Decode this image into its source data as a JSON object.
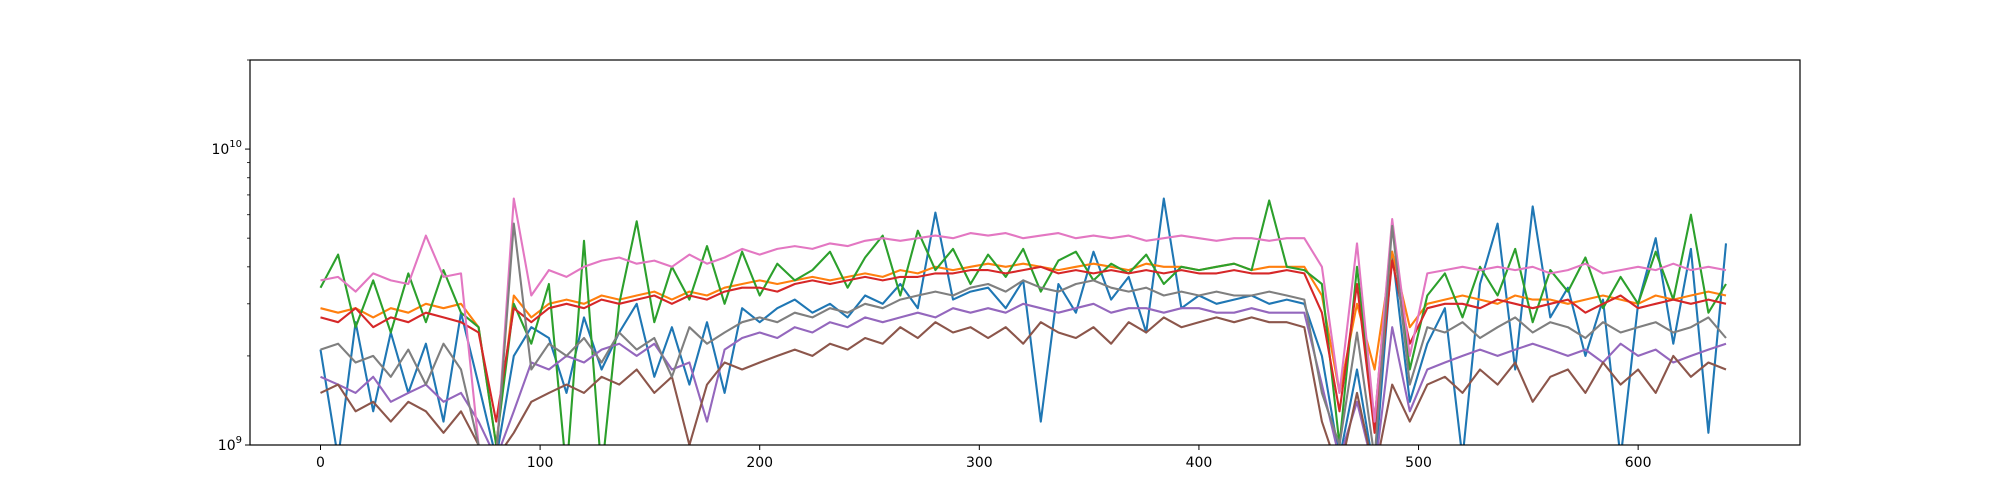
{
  "chart_data": {
    "type": "line",
    "title": "",
    "xlabel": "",
    "ylabel": "",
    "xlim": [
      -32.1,
      673.7
    ],
    "ylim": [
      1000000000.0,
      20000000000.0
    ],
    "yscale": "log",
    "grid": false,
    "legend": "none",
    "x_ticks": [
      0,
      100,
      200,
      300,
      400,
      500,
      600
    ],
    "x_tick_labels": [
      "0",
      "100",
      "200",
      "300",
      "400",
      "500",
      "600"
    ],
    "y_ticks": [
      1000000000.0,
      10000000000.0
    ],
    "y_tick_labels": [
      {
        "base": "10",
        "exp": "9"
      },
      {
        "base": "10",
        "exp": "10"
      }
    ],
    "x": [
      0,
      8,
      16,
      24,
      32,
      40,
      48,
      56,
      64,
      72,
      80,
      88,
      96,
      104,
      112,
      120,
      128,
      136,
      144,
      152,
      160,
      168,
      176,
      184,
      192,
      200,
      208,
      216,
      224,
      232,
      240,
      248,
      256,
      264,
      272,
      280,
      288,
      296,
      304,
      312,
      320,
      328,
      336,
      344,
      352,
      360,
      368,
      376,
      384,
      392,
      400,
      408,
      416,
      424,
      432,
      440,
      448,
      456,
      464,
      472,
      480,
      488,
      496,
      504,
      512,
      520,
      528,
      536,
      544,
      552,
      560,
      568,
      576,
      584,
      592,
      600,
      608,
      616,
      624,
      632,
      640
    ],
    "series": [
      {
        "color": "#1f77b4",
        "values": [
          2100000000.0,
          900000000.0,
          2600000000.0,
          1300000000.0,
          2400000000.0,
          1500000000.0,
          2200000000.0,
          1200000000.0,
          2800000000.0,
          1600000000.0,
          900000000.0,
          2000000000.0,
          2500000000.0,
          2300000000.0,
          1500000000.0,
          2700000000.0,
          1800000000.0,
          2400000000.0,
          3000000000.0,
          1700000000.0,
          2500000000.0,
          1600000000.0,
          2600000000.0,
          1500000000.0,
          2900000000.0,
          2600000000.0,
          2900000000.0,
          3100000000.0,
          2800000000.0,
          3000000000.0,
          2700000000.0,
          3200000000.0,
          3000000000.0,
          3500000000.0,
          2900000000.0,
          6100000000.0,
          3100000000.0,
          3300000000.0,
          3400000000.0,
          2900000000.0,
          3600000000.0,
          1200000000.0,
          3500000000.0,
          2800000000.0,
          4500000000.0,
          3100000000.0,
          3700000000.0,
          2400000000.0,
          6800000000.0,
          2900000000.0,
          3200000000.0,
          3000000000.0,
          3100000000.0,
          3200000000.0,
          3000000000.0,
          3100000000.0,
          3000000000.0,
          2000000000.0,
          900000000.0,
          1800000000.0,
          800000000.0,
          4500000000.0,
          1400000000.0,
          2200000000.0,
          2900000000.0,
          900000000.0,
          3500000000.0,
          5600000000.0,
          1800000000.0,
          6400000000.0,
          2700000000.0,
          3400000000.0,
          2000000000.0,
          3100000000.0,
          900000000.0,
          3000000000.0,
          5000000000.0,
          2200000000.0,
          4600000000.0,
          1100000000.0,
          4800000000.0
        ]
      },
      {
        "color": "#ff7f0e",
        "values": [
          2900000000.0,
          2800000000.0,
          2900000000.0,
          2700000000.0,
          2900000000.0,
          2800000000.0,
          3000000000.0,
          2900000000.0,
          3000000000.0,
          2500000000.0,
          1000000000.0,
          3200000000.0,
          2700000000.0,
          3000000000.0,
          3100000000.0,
          3000000000.0,
          3200000000.0,
          3100000000.0,
          3200000000.0,
          3300000000.0,
          3100000000.0,
          3300000000.0,
          3200000000.0,
          3400000000.0,
          3500000000.0,
          3600000000.0,
          3500000000.0,
          3600000000.0,
          3700000000.0,
          3600000000.0,
          3700000000.0,
          3800000000.0,
          3700000000.0,
          3900000000.0,
          3800000000.0,
          4000000000.0,
          3900000000.0,
          4000000000.0,
          4100000000.0,
          4000000000.0,
          4100000000.0,
          4000000000.0,
          3900000000.0,
          4000000000.0,
          4100000000.0,
          4000000000.0,
          3900000000.0,
          4100000000.0,
          4000000000.0,
          4000000000.0,
          3900000000.0,
          4000000000.0,
          4100000000.0,
          3900000000.0,
          4000000000.0,
          4000000000.0,
          4000000000.0,
          3200000000.0,
          1500000000.0,
          3000000000.0,
          1800000000.0,
          4500000000.0,
          2500000000.0,
          3000000000.0,
          3100000000.0,
          3200000000.0,
          3100000000.0,
          3000000000.0,
          3200000000.0,
          3100000000.0,
          3100000000.0,
          3000000000.0,
          3100000000.0,
          3200000000.0,
          3100000000.0,
          3000000000.0,
          3200000000.0,
          3100000000.0,
          3200000000.0,
          3300000000.0,
          3200000000.0
        ]
      },
      {
        "color": "#2ca02c",
        "values": [
          3400000000.0,
          4400000000.0,
          2500000000.0,
          3600000000.0,
          2400000000.0,
          3800000000.0,
          2600000000.0,
          3900000000.0,
          2800000000.0,
          2500000000.0,
          1000000000.0,
          3000000000.0,
          2200000000.0,
          3500000000.0,
          800000000.0,
          4900000000.0,
          800000000.0,
          3000000000.0,
          5700000000.0,
          2600000000.0,
          4000000000.0,
          3100000000.0,
          4700000000.0,
          3000000000.0,
          4500000000.0,
          3200000000.0,
          4100000000.0,
          3600000000.0,
          3900000000.0,
          4500000000.0,
          3400000000.0,
          4300000000.0,
          5100000000.0,
          3200000000.0,
          5300000000.0,
          3900000000.0,
          4600000000.0,
          3500000000.0,
          4400000000.0,
          3700000000.0,
          4600000000.0,
          3300000000.0,
          4200000000.0,
          4500000000.0,
          3600000000.0,
          4100000000.0,
          3800000000.0,
          4400000000.0,
          3500000000.0,
          4000000000.0,
          3900000000.0,
          4000000000.0,
          4100000000.0,
          3900000000.0,
          6700000000.0,
          4000000000.0,
          3900000000.0,
          3500000000.0,
          1000000000.0,
          4000000000.0,
          1200000000.0,
          5600000000.0,
          1800000000.0,
          3200000000.0,
          3800000000.0,
          2700000000.0,
          4000000000.0,
          3200000000.0,
          4600000000.0,
          2600000000.0,
          3900000000.0,
          3300000000.0,
          4300000000.0,
          2900000000.0,
          3700000000.0,
          3000000000.0,
          4500000000.0,
          3100000000.0,
          6000000000.0,
          2800000000.0,
          3500000000.0
        ]
      },
      {
        "color": "#d62728",
        "values": [
          2700000000.0,
          2600000000.0,
          2900000000.0,
          2500000000.0,
          2700000000.0,
          2600000000.0,
          2800000000.0,
          2700000000.0,
          2600000000.0,
          2400000000.0,
          1200000000.0,
          2900000000.0,
          2600000000.0,
          2900000000.0,
          3000000000.0,
          2900000000.0,
          3100000000.0,
          3000000000.0,
          3100000000.0,
          3200000000.0,
          3000000000.0,
          3200000000.0,
          3100000000.0,
          3300000000.0,
          3400000000.0,
          3400000000.0,
          3300000000.0,
          3500000000.0,
          3600000000.0,
          3500000000.0,
          3600000000.0,
          3700000000.0,
          3600000000.0,
          3700000000.0,
          3700000000.0,
          3800000000.0,
          3800000000.0,
          3900000000.0,
          3900000000.0,
          3800000000.0,
          3900000000.0,
          4000000000.0,
          3800000000.0,
          3900000000.0,
          3800000000.0,
          3900000000.0,
          3800000000.0,
          3900000000.0,
          3800000000.0,
          3900000000.0,
          3800000000.0,
          3800000000.0,
          3900000000.0,
          3800000000.0,
          3800000000.0,
          3900000000.0,
          3800000000.0,
          2800000000.0,
          1300000000.0,
          3500000000.0,
          1100000000.0,
          4200000000.0,
          2200000000.0,
          2900000000.0,
          3000000000.0,
          3000000000.0,
          2900000000.0,
          3100000000.0,
          3000000000.0,
          2900000000.0,
          3000000000.0,
          3100000000.0,
          2800000000.0,
          3000000000.0,
          3200000000.0,
          2900000000.0,
          3000000000.0,
          3100000000.0,
          3000000000.0,
          3100000000.0,
          3000000000.0
        ]
      },
      {
        "color": "#9467bd",
        "values": [
          1700000000.0,
          1600000000.0,
          1500000000.0,
          1700000000.0,
          1400000000.0,
          1500000000.0,
          1600000000.0,
          1400000000.0,
          1500000000.0,
          1200000000.0,
          900000000.0,
          1300000000.0,
          1900000000.0,
          1800000000.0,
          2000000000.0,
          1900000000.0,
          2100000000.0,
          2200000000.0,
          2000000000.0,
          2200000000.0,
          1800000000.0,
          1900000000.0,
          1200000000.0,
          2100000000.0,
          2300000000.0,
          2400000000.0,
          2300000000.0,
          2500000000.0,
          2400000000.0,
          2600000000.0,
          2500000000.0,
          2700000000.0,
          2600000000.0,
          2700000000.0,
          2800000000.0,
          2700000000.0,
          2900000000.0,
          2800000000.0,
          2900000000.0,
          2800000000.0,
          3000000000.0,
          2900000000.0,
          2800000000.0,
          2900000000.0,
          3000000000.0,
          2800000000.0,
          2900000000.0,
          2900000000.0,
          2800000000.0,
          2900000000.0,
          2900000000.0,
          2800000000.0,
          2800000000.0,
          2900000000.0,
          2800000000.0,
          2800000000.0,
          2800000000.0,
          1600000000.0,
          900000000.0,
          1400000000.0,
          800000000.0,
          2500000000.0,
          1300000000.0,
          1800000000.0,
          1900000000.0,
          2000000000.0,
          2100000000.0,
          2000000000.0,
          2100000000.0,
          2200000000.0,
          2100000000.0,
          2000000000.0,
          2100000000.0,
          1900000000.0,
          2200000000.0,
          2000000000.0,
          2100000000.0,
          1900000000.0,
          2000000000.0,
          2100000000.0,
          2200000000.0
        ]
      },
      {
        "color": "#8c564b",
        "values": [
          1500000000.0,
          1600000000.0,
          1300000000.0,
          1400000000.0,
          1200000000.0,
          1400000000.0,
          1300000000.0,
          1100000000.0,
          1300000000.0,
          1000000000.0,
          900000000.0,
          1100000000.0,
          1400000000.0,
          1500000000.0,
          1600000000.0,
          1500000000.0,
          1700000000.0,
          1600000000.0,
          1800000000.0,
          1500000000.0,
          1700000000.0,
          1000000000.0,
          1600000000.0,
          1900000000.0,
          1800000000.0,
          1900000000.0,
          2000000000.0,
          2100000000.0,
          2000000000.0,
          2200000000.0,
          2100000000.0,
          2300000000.0,
          2200000000.0,
          2500000000.0,
          2300000000.0,
          2600000000.0,
          2400000000.0,
          2500000000.0,
          2300000000.0,
          2500000000.0,
          2200000000.0,
          2600000000.0,
          2400000000.0,
          2300000000.0,
          2500000000.0,
          2200000000.0,
          2600000000.0,
          2400000000.0,
          2700000000.0,
          2500000000.0,
          2600000000.0,
          2700000000.0,
          2600000000.0,
          2700000000.0,
          2600000000.0,
          2600000000.0,
          2500000000.0,
          1200000000.0,
          800000000.0,
          1500000000.0,
          800000000.0,
          1600000000.0,
          1200000000.0,
          1600000000.0,
          1700000000.0,
          1500000000.0,
          1800000000.0,
          1600000000.0,
          1900000000.0,
          1400000000.0,
          1700000000.0,
          1800000000.0,
          1500000000.0,
          1900000000.0,
          1600000000.0,
          1800000000.0,
          1500000000.0,
          2000000000.0,
          1700000000.0,
          1900000000.0,
          1800000000.0
        ]
      },
      {
        "color": "#e377c2",
        "values": [
          3600000000.0,
          3700000000.0,
          3300000000.0,
          3800000000.0,
          3600000000.0,
          3500000000.0,
          5100000000.0,
          3700000000.0,
          3800000000.0,
          1000000000.0,
          900000000.0,
          6800000000.0,
          3200000000.0,
          3900000000.0,
          3700000000.0,
          4000000000.0,
          4200000000.0,
          4300000000.0,
          4100000000.0,
          4200000000.0,
          4000000000.0,
          4400000000.0,
          4100000000.0,
          4300000000.0,
          4600000000.0,
          4400000000.0,
          4600000000.0,
          4700000000.0,
          4600000000.0,
          4800000000.0,
          4700000000.0,
          4900000000.0,
          5000000000.0,
          4900000000.0,
          5000000000.0,
          5100000000.0,
          5000000000.0,
          5200000000.0,
          5100000000.0,
          5200000000.0,
          5000000000.0,
          5100000000.0,
          5200000000.0,
          5000000000.0,
          5100000000.0,
          5000000000.0,
          5100000000.0,
          4900000000.0,
          5000000000.0,
          5100000000.0,
          5000000000.0,
          4900000000.0,
          5000000000.0,
          5000000000.0,
          4900000000.0,
          5000000000.0,
          5000000000.0,
          4000000000.0,
          1500000000.0,
          4800000000.0,
          1200000000.0,
          5800000000.0,
          2000000000.0,
          3800000000.0,
          3900000000.0,
          4000000000.0,
          3900000000.0,
          4000000000.0,
          3900000000.0,
          4000000000.0,
          3800000000.0,
          3900000000.0,
          4100000000.0,
          3800000000.0,
          3900000000.0,
          4000000000.0,
          3900000000.0,
          4100000000.0,
          3900000000.0,
          4000000000.0,
          3900000000.0
        ]
      },
      {
        "color": "#7f7f7f",
        "values": [
          2100000000.0,
          2200000000.0,
          1900000000.0,
          2000000000.0,
          1700000000.0,
          2100000000.0,
          1600000000.0,
          2200000000.0,
          1800000000.0,
          1000000000.0,
          900000000.0,
          5600000000.0,
          1800000000.0,
          2200000000.0,
          2000000000.0,
          2300000000.0,
          1900000000.0,
          2400000000.0,
          2100000000.0,
          2300000000.0,
          1700000000.0,
          2500000000.0,
          2200000000.0,
          2400000000.0,
          2600000000.0,
          2700000000.0,
          2600000000.0,
          2800000000.0,
          2700000000.0,
          2900000000.0,
          2800000000.0,
          3000000000.0,
          2900000000.0,
          3100000000.0,
          3200000000.0,
          3300000000.0,
          3200000000.0,
          3400000000.0,
          3500000000.0,
          3300000000.0,
          3600000000.0,
          3400000000.0,
          3300000000.0,
          3500000000.0,
          3600000000.0,
          3400000000.0,
          3300000000.0,
          3400000000.0,
          3200000000.0,
          3300000000.0,
          3200000000.0,
          3300000000.0,
          3200000000.0,
          3200000000.0,
          3300000000.0,
          3200000000.0,
          3100000000.0,
          1500000000.0,
          1000000000.0,
          2400000000.0,
          900000000.0,
          5500000000.0,
          1600000000.0,
          2500000000.0,
          2400000000.0,
          2600000000.0,
          2300000000.0,
          2500000000.0,
          2700000000.0,
          2400000000.0,
          2600000000.0,
          2500000000.0,
          2300000000.0,
          2600000000.0,
          2400000000.0,
          2500000000.0,
          2600000000.0,
          2400000000.0,
          2500000000.0,
          2700000000.0,
          2300000000.0
        ]
      }
    ]
  }
}
